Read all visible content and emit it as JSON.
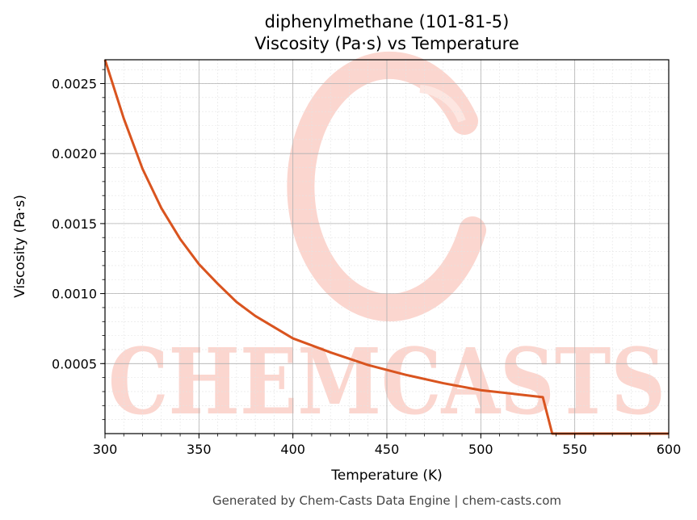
{
  "chart_data": {
    "type": "line",
    "title_line1": "diphenylmethane (101-81-5)",
    "title_line2": "Viscosity (Pa·s) vs Temperature",
    "xlabel": "Temperature (K)",
    "ylabel": "Viscosity (Pa·s)",
    "xlim": [
      300,
      600
    ],
    "ylim": [
      0.0,
      0.00267
    ],
    "x_ticks": [
      300,
      350,
      400,
      450,
      500,
      550,
      600
    ],
    "x_tick_labels": [
      "300",
      "350",
      "400",
      "450",
      "500",
      "550",
      "600"
    ],
    "y_ticks": [
      0.0005,
      0.001,
      0.0015,
      0.002,
      0.0025
    ],
    "y_tick_labels": [
      "0.0005",
      "0.0010",
      "0.0015",
      "0.0020",
      "0.0025"
    ],
    "grid": true,
    "line_color": "#d9541f",
    "series": [
      {
        "x": [
          300,
          310,
          320,
          330,
          340,
          350,
          360,
          370,
          380,
          390,
          400,
          420,
          440,
          460,
          480,
          500,
          520,
          533,
          538,
          545,
          560,
          580,
          600
        ],
        "values": [
          0.00267,
          0.00225,
          0.00189,
          0.00161,
          0.00139,
          0.00121,
          0.00107,
          0.00094,
          0.00084,
          0.00076,
          0.00068,
          0.00058,
          0.00049,
          0.00042,
          0.00036,
          0.00031,
          0.00028,
          0.00026,
          0.0,
          0.0,
          0.0,
          0.0,
          0.0
        ]
      }
    ]
  },
  "watermark": {
    "text": "CHEMCASTS",
    "color": "#fbd6cf"
  },
  "footer": "Generated by Chem-Casts Data Engine | chem-casts.com"
}
